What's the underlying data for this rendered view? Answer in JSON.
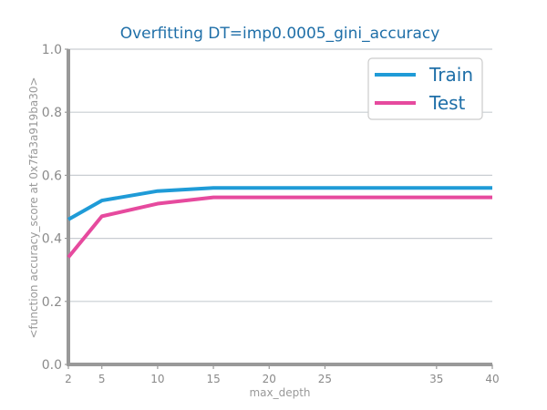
{
  "chart_data": {
    "type": "line",
    "title": "Overfitting DT=imp0.0005_gini_accuracy",
    "xlabel": "max_depth",
    "ylabel": "<function accuracy_score at 0x7fa3a919ba30>",
    "x": [
      2,
      5,
      10,
      15,
      20,
      25,
      30,
      35,
      40
    ],
    "x_ticks": [
      2,
      5,
      10,
      15,
      20,
      25,
      35,
      40
    ],
    "xlim": [
      2,
      40
    ],
    "ylim": [
      0.0,
      1.0
    ],
    "y_ticks": [
      "0.0",
      "0.2",
      "0.4",
      "0.6",
      "0.8",
      "1.0"
    ],
    "grid": "horizontal",
    "legend_position": "top-right",
    "series": [
      {
        "name": "Train",
        "color": "#1f9bd7",
        "values": [
          0.46,
          0.52,
          0.55,
          0.56,
          0.56,
          0.56,
          0.56,
          0.56,
          0.56
        ]
      },
      {
        "name": "Test",
        "color": "#e64a9e",
        "values": [
          0.34,
          0.47,
          0.51,
          0.53,
          0.53,
          0.53,
          0.53,
          0.53,
          0.53
        ]
      }
    ]
  }
}
